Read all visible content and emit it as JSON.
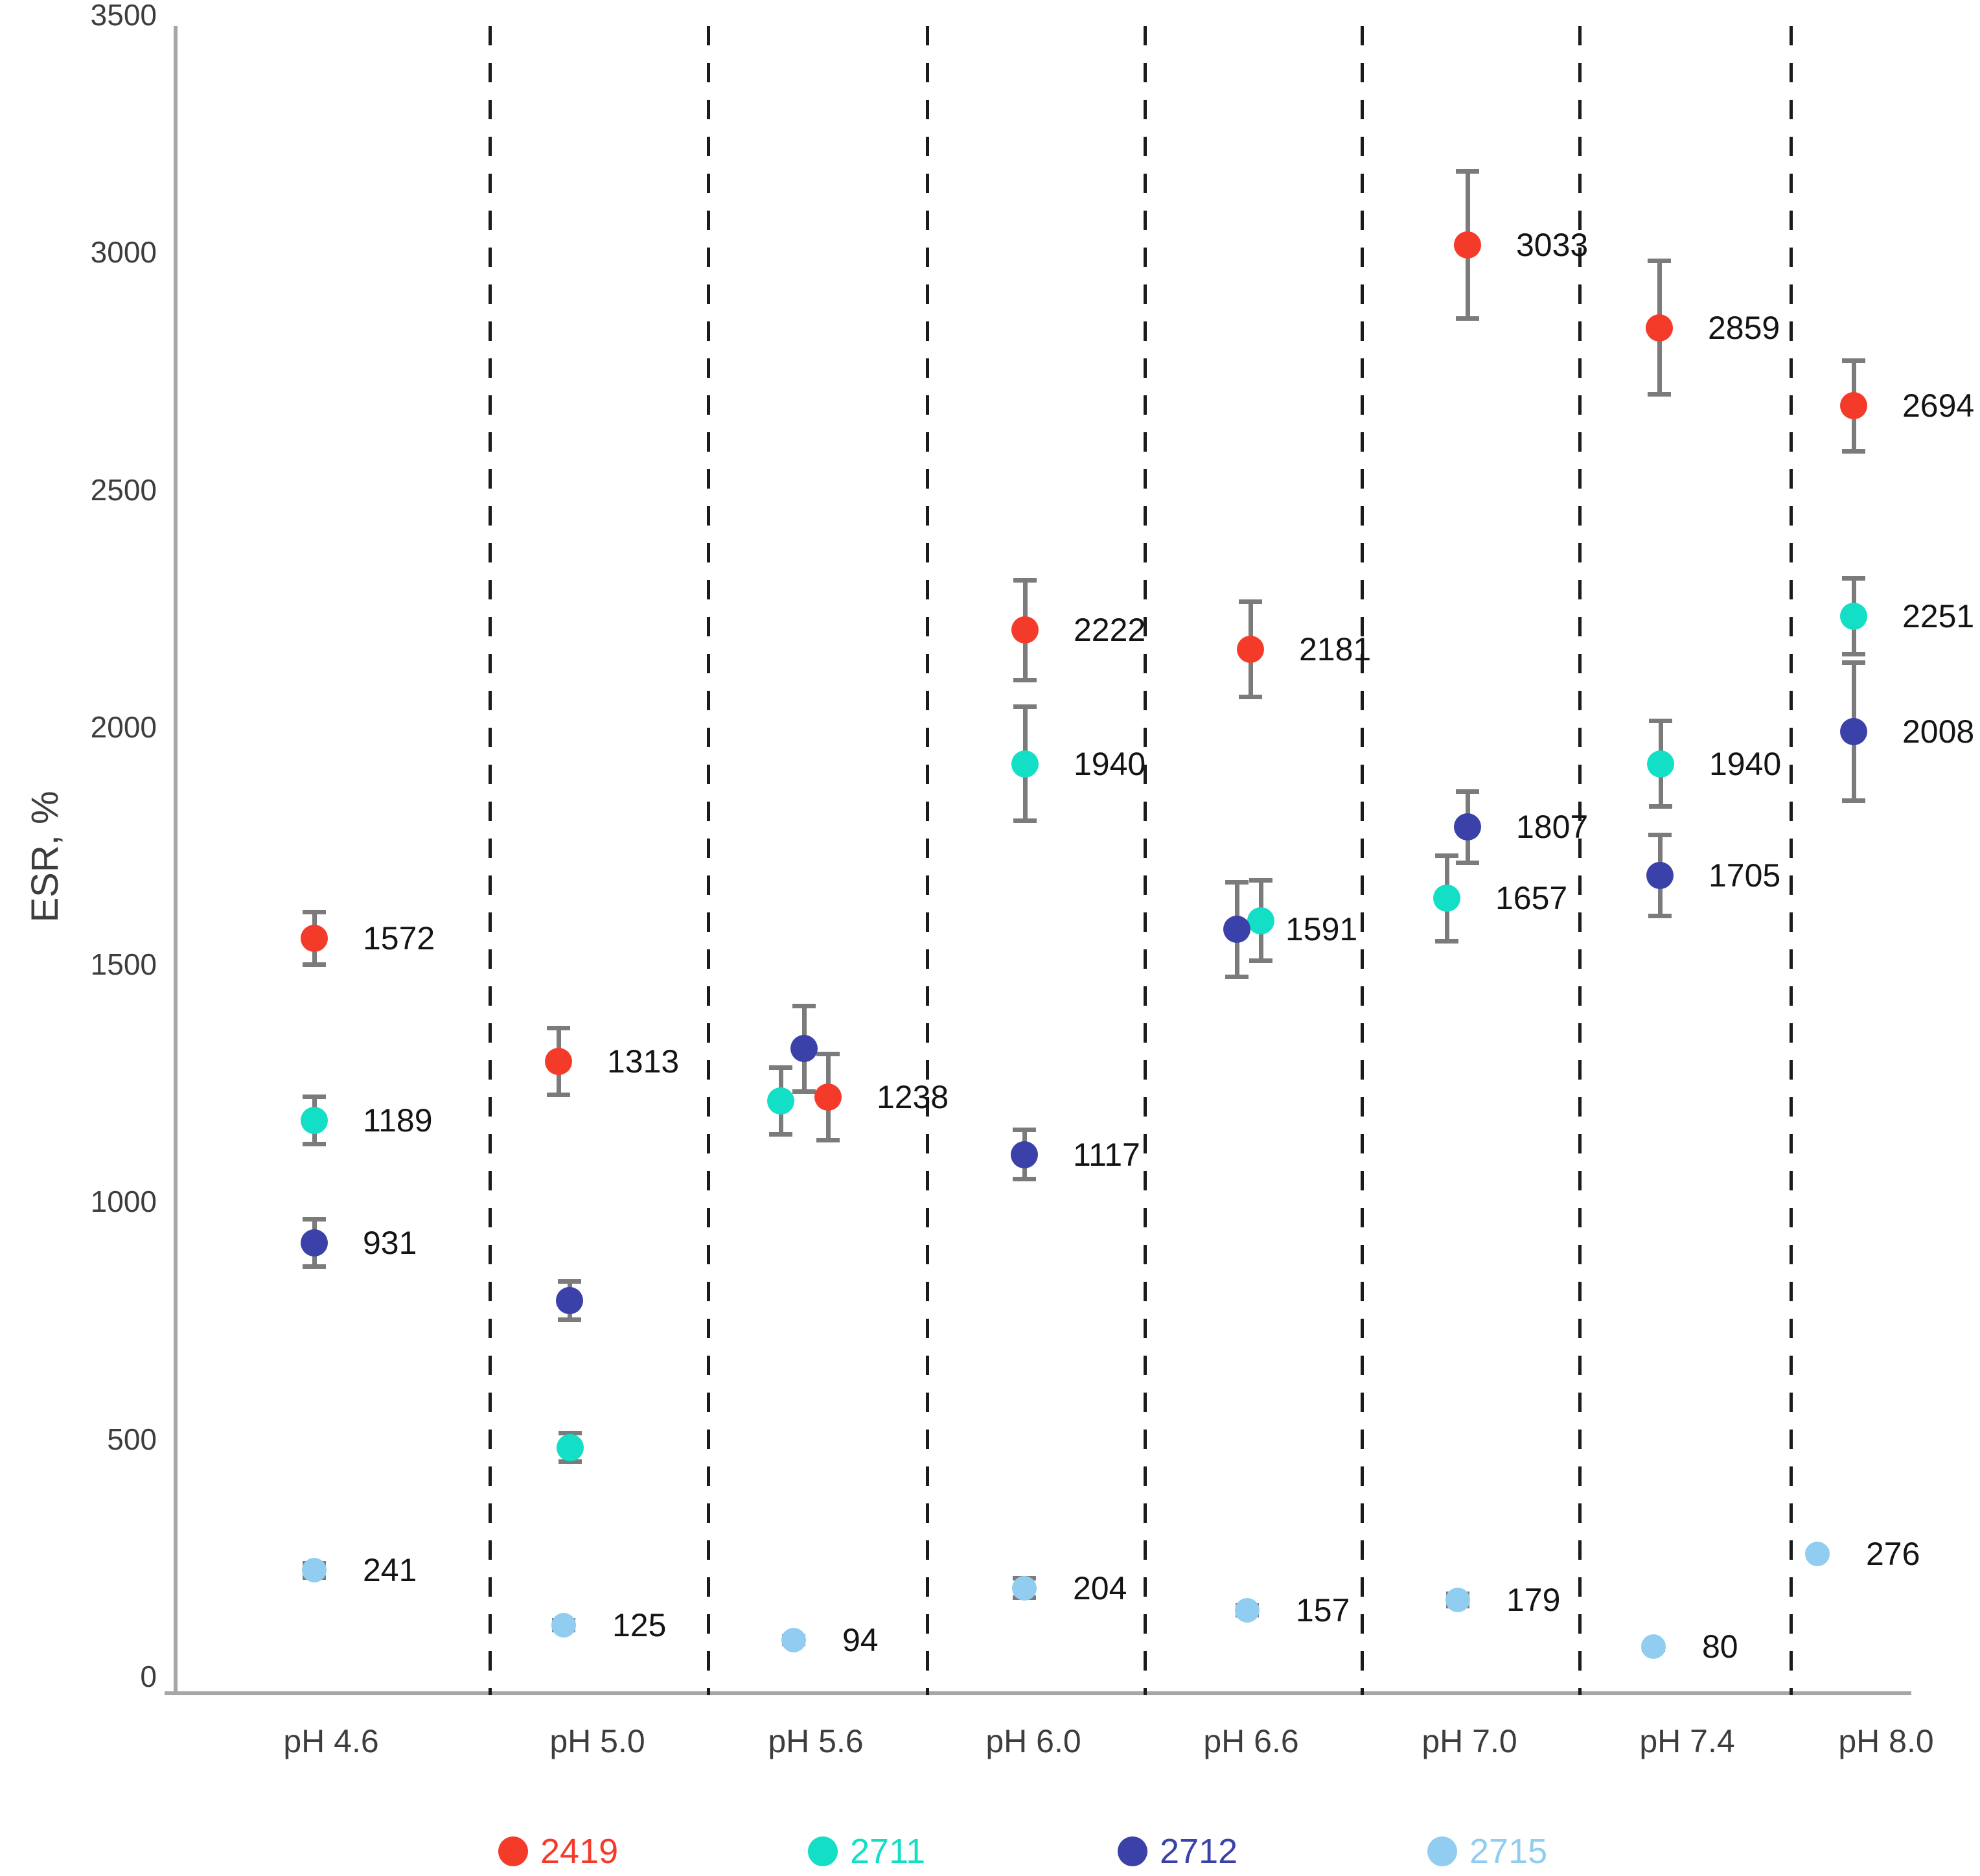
{
  "page": {
    "background": "#ffffff"
  },
  "chart_data": {
    "type": "scatter",
    "title": "",
    "xlabel": "",
    "ylabel": "ESR, %",
    "ylim": [
      0,
      3500
    ],
    "yticks": [
      "0",
      "500",
      "1000",
      "1500",
      "2000",
      "2500",
      "3000",
      "3500"
    ],
    "categories": [
      "pH 4.6",
      "pH 5.0",
      "pH 5.6",
      "pH 6.0",
      "pH 6.6",
      "pH 7.0",
      "pH 7.4",
      "pH 8.0"
    ],
    "grid": "dashed vertical separators between pH categories, no horizontal gridlines",
    "legend_position": "bottom",
    "error_bar_color": "#7b7b7b",
    "axis_color": "#a6a6a6",
    "separator_color": "#1b1b1b",
    "series": [
      {
        "name": "2419",
        "color": "#f43b2a",
        "marker_px": 42,
        "points": [
          {
            "value": 1572,
            "error": 60,
            "label": "1572",
            "dx": -26
          },
          {
            "value": 1313,
            "error": 75,
            "label": "1313",
            "dx": -60
          },
          {
            "value": 1238,
            "error": 95,
            "label": "1238",
            "dx": 19
          },
          {
            "value": 2222,
            "error": 110,
            "label": "2222",
            "dx": -13
          },
          {
            "value": 2181,
            "error": 105,
            "label": "2181",
            "dx": -1
          },
          {
            "value": 3033,
            "error": 160,
            "label": "3033",
            "dx": -3
          },
          {
            "value": 2859,
            "error": 145,
            "label": "2859",
            "dx": -43
          },
          {
            "value": 2694,
            "error": 100,
            "label": "2694",
            "dx": -50
          }
        ]
      },
      {
        "name": "2711",
        "color": "#12dfc5",
        "marker_px": 42,
        "points": [
          {
            "value": 1189,
            "error": 55,
            "label": "1189",
            "dx": -26
          },
          {
            "value": 500,
            "error": 35,
            "label": null,
            "dx": -42
          },
          {
            "value": 1230,
            "error": 75,
            "label": null,
            "dx": -54
          },
          {
            "value": 1940,
            "error": 125,
            "label": "1940",
            "dx": -13
          },
          {
            "value": 1610,
            "error": 90,
            "label": null,
            "dx": 15
          },
          {
            "value": 1657,
            "error": 95,
            "label": "1657",
            "dx": -35
          },
          {
            "value": 1940,
            "error": 95,
            "label": "1940",
            "dx": -41
          },
          {
            "value": 2251,
            "error": 85,
            "label": "2251",
            "dx": -50
          }
        ]
      },
      {
        "name": "2712",
        "color": "#3a41a8",
        "marker_px": 42,
        "points": [
          {
            "value": 931,
            "error": 55,
            "label": "931",
            "dx": -26
          },
          {
            "value": 810,
            "error": 45,
            "label": null,
            "dx": -43
          },
          {
            "value": 1340,
            "error": 95,
            "label": null,
            "dx": -18
          },
          {
            "value": 1117,
            "error": 57,
            "label": "1117",
            "dx": -14
          },
          {
            "value": 1591,
            "error": 105,
            "label": "1591",
            "dx": -22
          },
          {
            "value": 1807,
            "error": 80,
            "label": "1807",
            "dx": -3
          },
          {
            "value": 1705,
            "error": 90,
            "label": "1705",
            "dx": -42
          },
          {
            "value": 2008,
            "error": 150,
            "label": "2008",
            "dx": -50
          }
        ]
      },
      {
        "name": "2715",
        "color": "#90cdf0",
        "marker_px": 38,
        "points": [
          {
            "value": 241,
            "error": 20,
            "label": "241",
            "dx": -26
          },
          {
            "value": 125,
            "error": 15,
            "label": "125",
            "dx": -52
          },
          {
            "value": 94,
            "error": 12,
            "label": "94",
            "dx": -34
          },
          {
            "value": 204,
            "error": 25,
            "label": "204",
            "dx": -14
          },
          {
            "value": 157,
            "error": 15,
            "label": "157",
            "dx": -6
          },
          {
            "value": 179,
            "error": 18,
            "label": "179",
            "dx": -18
          },
          {
            "value": 80,
            "error": 10,
            "label": "80",
            "dx": -52
          },
          {
            "value": 276,
            "error": 10,
            "label": "276",
            "dx": -106
          }
        ]
      }
    ]
  }
}
